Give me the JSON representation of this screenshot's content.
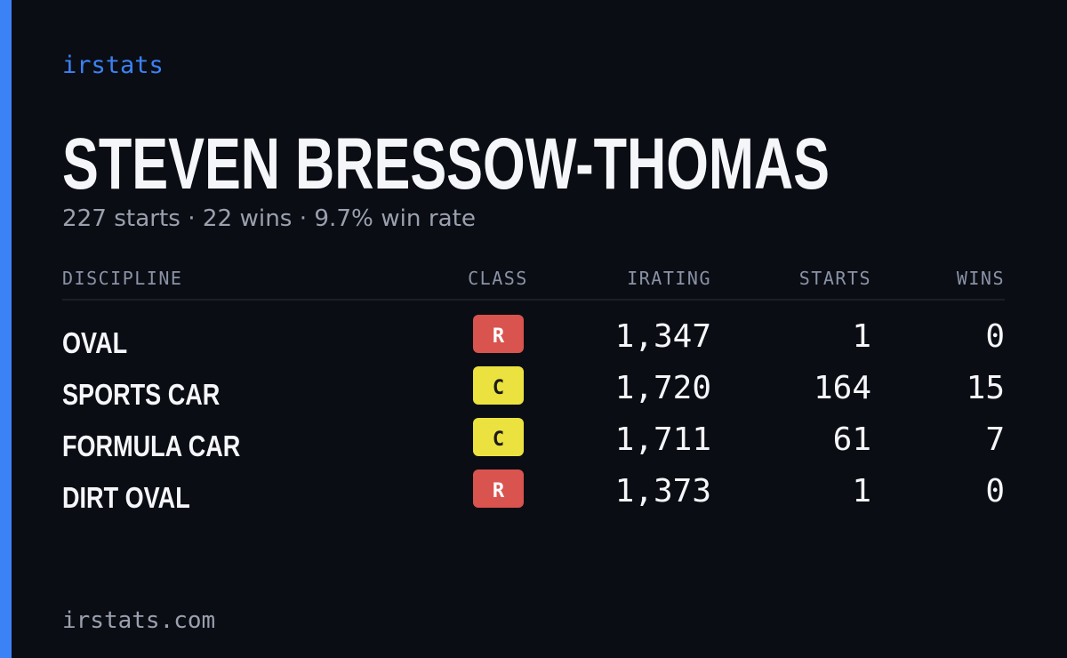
{
  "brand": "irstats",
  "driver": {
    "name": "STEVEN BRESSOW-THOMAS",
    "summary": "227 starts · 22 wins · 9.7% win rate"
  },
  "table": {
    "headers": [
      "DISCIPLINE",
      "CLASS",
      "IRATING",
      "STARTS",
      "WINS"
    ],
    "rows": [
      {
        "discipline": "OVAL",
        "class": "R",
        "class_color": "#d9534f",
        "class_text_color": "#ffffff",
        "irating": "1,347",
        "starts": "1",
        "wins": "0"
      },
      {
        "discipline": "SPORTS CAR",
        "class": "C",
        "class_color": "#ece23f",
        "class_text_color": "#1a1a1a",
        "irating": "1,720",
        "starts": "164",
        "wins": "15"
      },
      {
        "discipline": "FORMULA CAR",
        "class": "C",
        "class_color": "#ece23f",
        "class_text_color": "#1a1a1a",
        "irating": "1,711",
        "starts": "61",
        "wins": "7"
      },
      {
        "discipline": "DIRT OVAL",
        "class": "R",
        "class_color": "#d9534f",
        "class_text_color": "#ffffff",
        "irating": "1,373",
        "starts": "1",
        "wins": "0"
      }
    ]
  },
  "footer": "irstats.com"
}
